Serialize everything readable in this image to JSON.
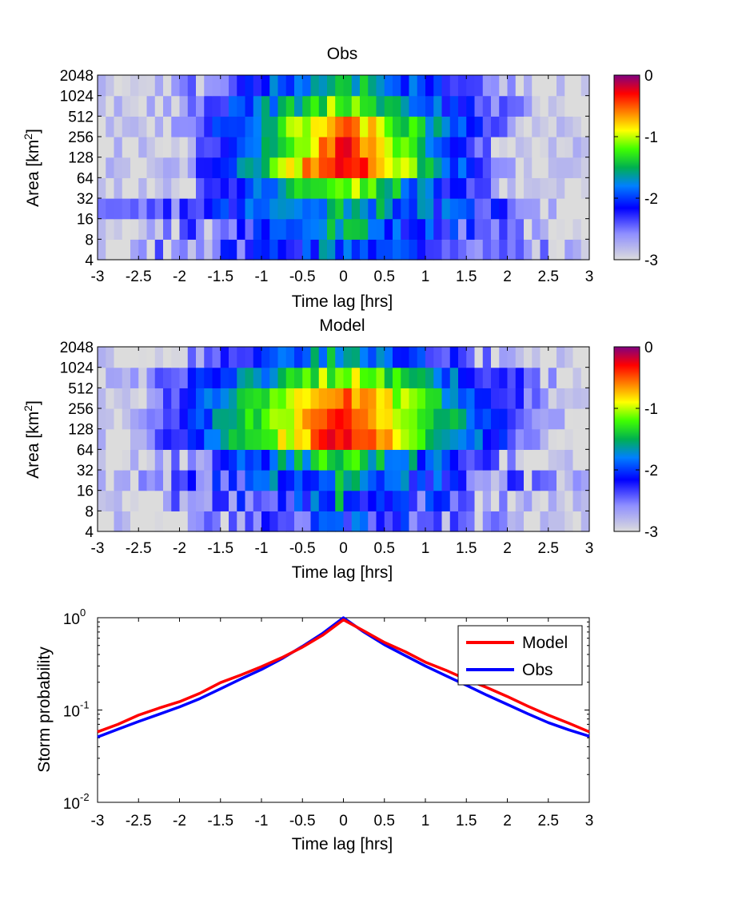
{
  "figure": {
    "background": "#ffffff"
  },
  "chart_data": [
    {
      "type": "heatmap",
      "title": "Obs",
      "xlabel": "Time lag [hrs]",
      "ylabel": "Area [km",
      "ylabel_sup": "2",
      "ylabel_end": "]",
      "xlim": [
        -3,
        3
      ],
      "x_ticks": [
        "-3",
        "-2.5",
        "-2",
        "-1.5",
        "-1",
        "-0.5",
        "0",
        "0.5",
        "1",
        "1.5",
        "2",
        "2.5",
        "3"
      ],
      "y_ticks": [
        "4",
        "8",
        "16",
        "32",
        "64",
        "128",
        "256",
        "512",
        "1024",
        "2048"
      ],
      "n_time_bins": 60,
      "value_scale": "log10",
      "value_range": [
        -3,
        0
      ],
      "colorbar_ticks": [
        "0",
        "-1",
        "-2",
        "-3"
      ],
      "rows": [
        {
          "area": "4-8",
          "peak": -1.8,
          "width": 2.6,
          "noise": 0.35
        },
        {
          "area": "8-16",
          "peak": -1.6,
          "width": 2.0,
          "noise": 0.35
        },
        {
          "area": "16-32",
          "peak": -1.5,
          "width": 2.3,
          "noise": 0.3
        },
        {
          "area": "32-64",
          "peak": -1.0,
          "width": 1.1,
          "noise": 0.25
        },
        {
          "area": "64-128",
          "peak": -0.08,
          "width": 0.75,
          "noise": 0.2
        },
        {
          "area": "128-256",
          "peak": -0.35,
          "width": 0.8,
          "noise": 0.2
        },
        {
          "area": "256-512",
          "peak": -0.5,
          "width": 0.95,
          "noise": 0.2
        },
        {
          "area": "512-1024",
          "peak": -1.05,
          "width": 1.3,
          "noise": 0.25
        },
        {
          "area": "1024-2048",
          "peak": -1.4,
          "width": 1.5,
          "noise": 0.25
        }
      ]
    },
    {
      "type": "heatmap",
      "title": "Model",
      "xlabel": "Time lag [hrs]",
      "ylabel": "Area [km",
      "ylabel_sup": "2",
      "ylabel_end": "]",
      "xlim": [
        -3,
        3
      ],
      "x_ticks": [
        "-3",
        "-2.5",
        "-2",
        "-1.5",
        "-1",
        "-0.5",
        "0",
        "0.5",
        "1",
        "1.5",
        "2",
        "2.5",
        "3"
      ],
      "y_ticks": [
        "4",
        "8",
        "16",
        "32",
        "64",
        "128",
        "256",
        "512",
        "1024",
        "2048"
      ],
      "n_time_bins": 60,
      "value_scale": "log10",
      "value_range": [
        -3,
        0
      ],
      "colorbar_ticks": [
        "0",
        "-1",
        "-2",
        "-3"
      ],
      "rows": [
        {
          "area": "4-8",
          "peak": -2.0,
          "width": 2.2,
          "noise": 0.4
        },
        {
          "area": "8-16",
          "peak": -1.8,
          "width": 2.2,
          "noise": 0.4
        },
        {
          "area": "16-32",
          "peak": -1.6,
          "width": 2.2,
          "noise": 0.35
        },
        {
          "area": "32-64",
          "peak": -1.2,
          "width": 1.4,
          "noise": 0.3
        },
        {
          "area": "64-128",
          "peak": -0.25,
          "width": 1.0,
          "noise": 0.2
        },
        {
          "area": "128-256",
          "peak": -0.3,
          "width": 1.05,
          "noise": 0.2
        },
        {
          "area": "256-512",
          "peak": -0.5,
          "width": 1.15,
          "noise": 0.2
        },
        {
          "area": "512-1024",
          "peak": -1.0,
          "width": 1.5,
          "noise": 0.25
        },
        {
          "area": "1024-2048",
          "peak": -1.5,
          "width": 1.6,
          "noise": 0.25
        }
      ]
    },
    {
      "type": "line",
      "xlabel": "Time lag [hrs]",
      "ylabel": "Storm probability",
      "xlim": [
        -3,
        3
      ],
      "ylim": [
        0.01,
        1
      ],
      "yscale": "log",
      "x_ticks": [
        "-3",
        "-2.5",
        "-2",
        "-1.5",
        "-1",
        "-0.5",
        "0",
        "0.5",
        "1",
        "1.5",
        "2",
        "2.5",
        "3"
      ],
      "y_ticks": [
        {
          "base": "10",
          "exp": "0",
          "value": 1
        },
        {
          "base": "10",
          "exp": "-1",
          "value": 0.1
        },
        {
          "base": "10",
          "exp": "-2",
          "value": 0.01
        }
      ],
      "legend": {
        "position": "top-right"
      },
      "series": [
        {
          "name": "Model",
          "color": "#ff0000",
          "x": [
            -3,
            -2.75,
            -2.5,
            -2.25,
            -2,
            -1.75,
            -1.5,
            -1.25,
            -1,
            -0.75,
            -0.5,
            -0.25,
            0,
            0.25,
            0.5,
            0.75,
            1,
            1.25,
            1.5,
            1.75,
            2,
            2.25,
            2.5,
            2.75,
            3
          ],
          "y": [
            0.058,
            0.07,
            0.088,
            0.105,
            0.123,
            0.152,
            0.198,
            0.24,
            0.295,
            0.37,
            0.48,
            0.65,
            0.95,
            0.72,
            0.54,
            0.43,
            0.33,
            0.27,
            0.215,
            0.175,
            0.14,
            0.11,
            0.088,
            0.072,
            0.058
          ]
        },
        {
          "name": "Obs",
          "color": "#0000ff",
          "x": [
            -3,
            -2.75,
            -2.5,
            -2.25,
            -2,
            -1.75,
            -1.5,
            -1.25,
            -1,
            -0.75,
            -0.5,
            -0.25,
            0,
            0.25,
            0.5,
            0.75,
            1,
            1.25,
            1.5,
            1.75,
            2,
            2.25,
            2.5,
            2.75,
            3
          ],
          "y": [
            0.051,
            0.062,
            0.075,
            0.09,
            0.108,
            0.133,
            0.17,
            0.217,
            0.275,
            0.36,
            0.49,
            0.68,
            1.0,
            0.7,
            0.51,
            0.39,
            0.3,
            0.235,
            0.185,
            0.145,
            0.115,
            0.091,
            0.073,
            0.061,
            0.052
          ]
        }
      ]
    }
  ]
}
